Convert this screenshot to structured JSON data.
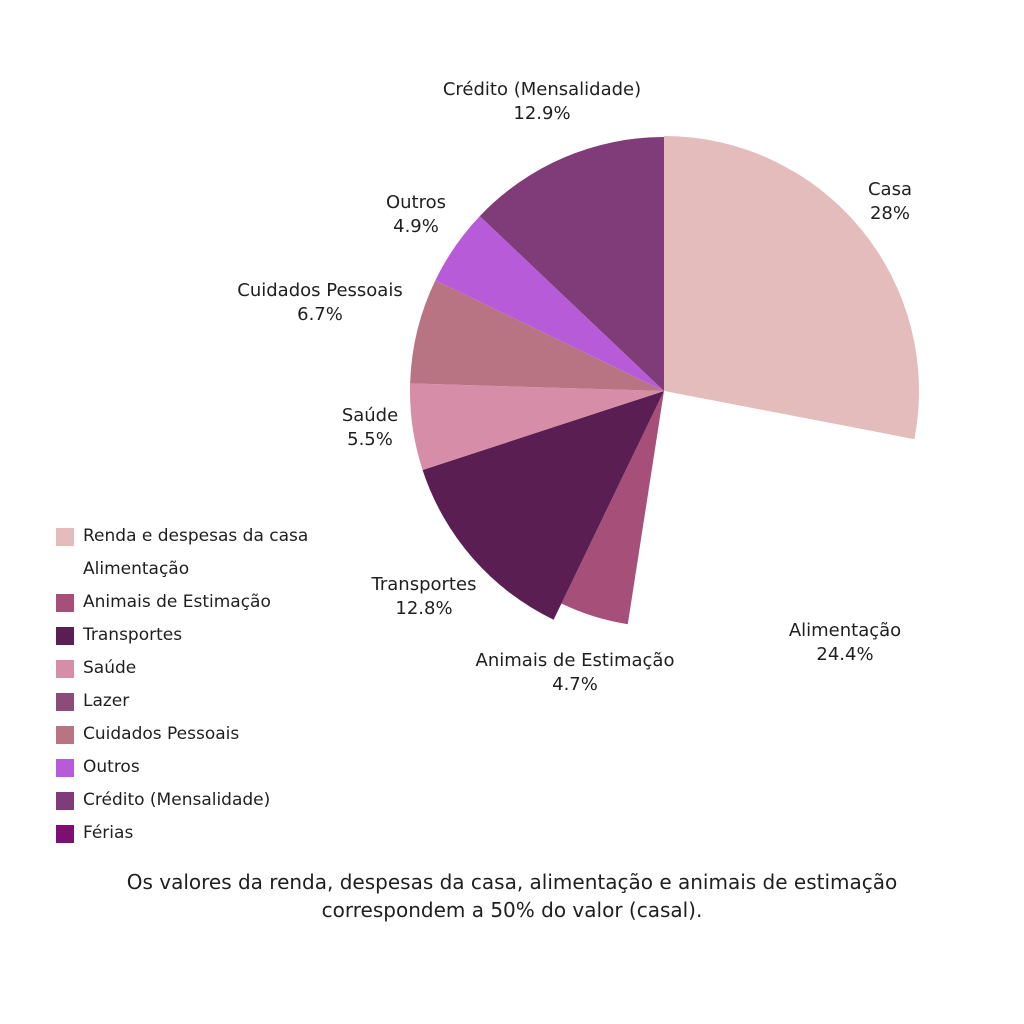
{
  "chart_data": {
    "type": "pie",
    "slices": [
      {
        "label": "Casa",
        "value": 28,
        "value_text": "28%",
        "color": "#e4bcbb"
      },
      {
        "label": "Alimentação",
        "value": 24.4,
        "value_text": "24.4%",
        "color": "#ffffff"
      },
      {
        "label": "Animais de Estimação",
        "value": 4.7,
        "value_text": "4.7%",
        "color": "#a64f79"
      },
      {
        "label": "Transportes",
        "value": 12.8,
        "value_text": "12.8%",
        "color": "#5b1e52"
      },
      {
        "label": "Saúde",
        "value": 5.5,
        "value_text": "5.5%",
        "color": "#d68ea8"
      },
      {
        "label": "Cuidados Pessoais",
        "value": 6.7,
        "value_text": "6.7%",
        "color": "#b97483"
      },
      {
        "label": "Outros",
        "value": 4.9,
        "value_text": "4.9%",
        "color": "#b85bd9"
      },
      {
        "label": "Crédito (Mensalidade)",
        "value": 12.9,
        "value_text": "12.9%",
        "color": "#7f3c78"
      }
    ],
    "legend": [
      {
        "label": "Renda e despesas da casa",
        "color": "#e4bcbb"
      },
      {
        "label": "Alimentação",
        "color": "#ffffff"
      },
      {
        "label": "Animais de Estimação",
        "color": "#a64f79"
      },
      {
        "label": "Transportes",
        "color": "#5b1e52"
      },
      {
        "label": "Saúde",
        "color": "#d68ea8"
      },
      {
        "label": "Lazer",
        "color": "#8c4c7a"
      },
      {
        "label": "Cuidados Pessoais",
        "color": "#b97483"
      },
      {
        "label": "Outros",
        "color": "#b85bd9"
      },
      {
        "label": "Crédito (Mensalidade)",
        "color": "#7f3c78"
      },
      {
        "label": "Férias",
        "color": "#7d0f73"
      }
    ],
    "legend_position": "bottom-left"
  },
  "caption": {
    "line1": "Os valores da renda, despesas da casa, alimentação e animais de estimação",
    "line2": "correspondem a 50% do valor (casal)."
  }
}
